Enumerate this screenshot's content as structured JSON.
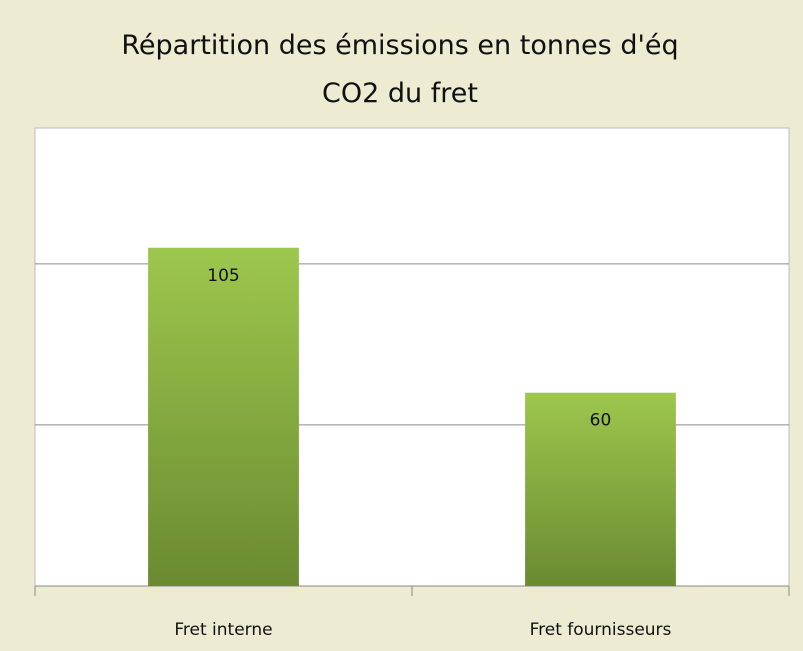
{
  "chart_data": {
    "type": "bar",
    "title": "Répartition des émissions en tonnes d'éq CO2 du fret",
    "categories": [
      "Fret interne",
      "Fret fournisseurs"
    ],
    "values": [
      105,
      60
    ],
    "color": "#8db043",
    "ylim": [
      0,
      140
    ],
    "yticks": [
      0,
      50,
      100
    ],
    "grid": true
  }
}
